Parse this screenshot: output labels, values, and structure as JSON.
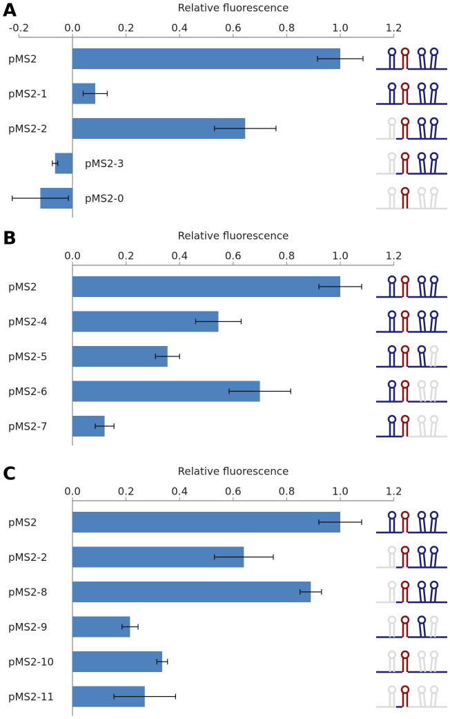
{
  "chart_data": [
    {
      "type": "bar",
      "panel_label": "A",
      "xlabel": "Relative fluorescence",
      "categories": [
        "pMS2",
        "pMS2-1",
        "pMS2-2",
        "pMS2-3",
        "pMS2-0"
      ],
      "values": [
        1.0,
        0.085,
        0.645,
        -0.065,
        -0.12
      ],
      "errors": [
        0.085,
        0.045,
        0.115,
        0.01,
        0.105
      ],
      "color": "#4f81bd",
      "xlim": [
        -0.2,
        1.2
      ],
      "xticks": [
        -0.2,
        {
          "value": 0,
          "label": "0.0"
        },
        0.2,
        0.4,
        0.6,
        0.8,
        {
          "value": 1,
          "label": "1.0"
        },
        1.2
      ]
    },
    {
      "type": "bar",
      "panel_label": "B",
      "xlabel": "Relative fluorescence",
      "categories": [
        "pMS2",
        "pMS2-4",
        "pMS2-5",
        "pMS2-6",
        "pMS2-7"
      ],
      "values": [
        1.0,
        0.545,
        0.355,
        0.7,
        0.12
      ],
      "errors": [
        0.08,
        0.085,
        0.045,
        0.115,
        0.035
      ],
      "color": "#4f81bd",
      "xlim": [
        0,
        1.2
      ],
      "xticks": [
        {
          "value": 0,
          "label": "0.0"
        },
        0.2,
        0.4,
        0.6,
        0.8,
        {
          "value": 1,
          "label": "1.0"
        },
        1.2
      ]
    },
    {
      "type": "bar",
      "panel_label": "C",
      "xlabel": "Relative fluorescence",
      "categories": [
        "pMS2",
        "pMS2-2",
        "pMS2-8",
        "pMS2-9",
        "pMS2-10",
        "pMS2-11"
      ],
      "values": [
        1.0,
        0.64,
        0.89,
        0.215,
        0.335,
        0.27
      ],
      "errors": [
        0.08,
        0.11,
        0.04,
        0.03,
        0.02,
        0.115
      ],
      "color": "#4f81bd",
      "xlim": [
        0,
        1.2
      ],
      "xticks": [
        {
          "value": 0,
          "label": "0.0"
        },
        0.2,
        0.4,
        0.6,
        0.8,
        {
          "value": 1,
          "label": "1.0"
        },
        1.2
      ]
    }
  ]
}
